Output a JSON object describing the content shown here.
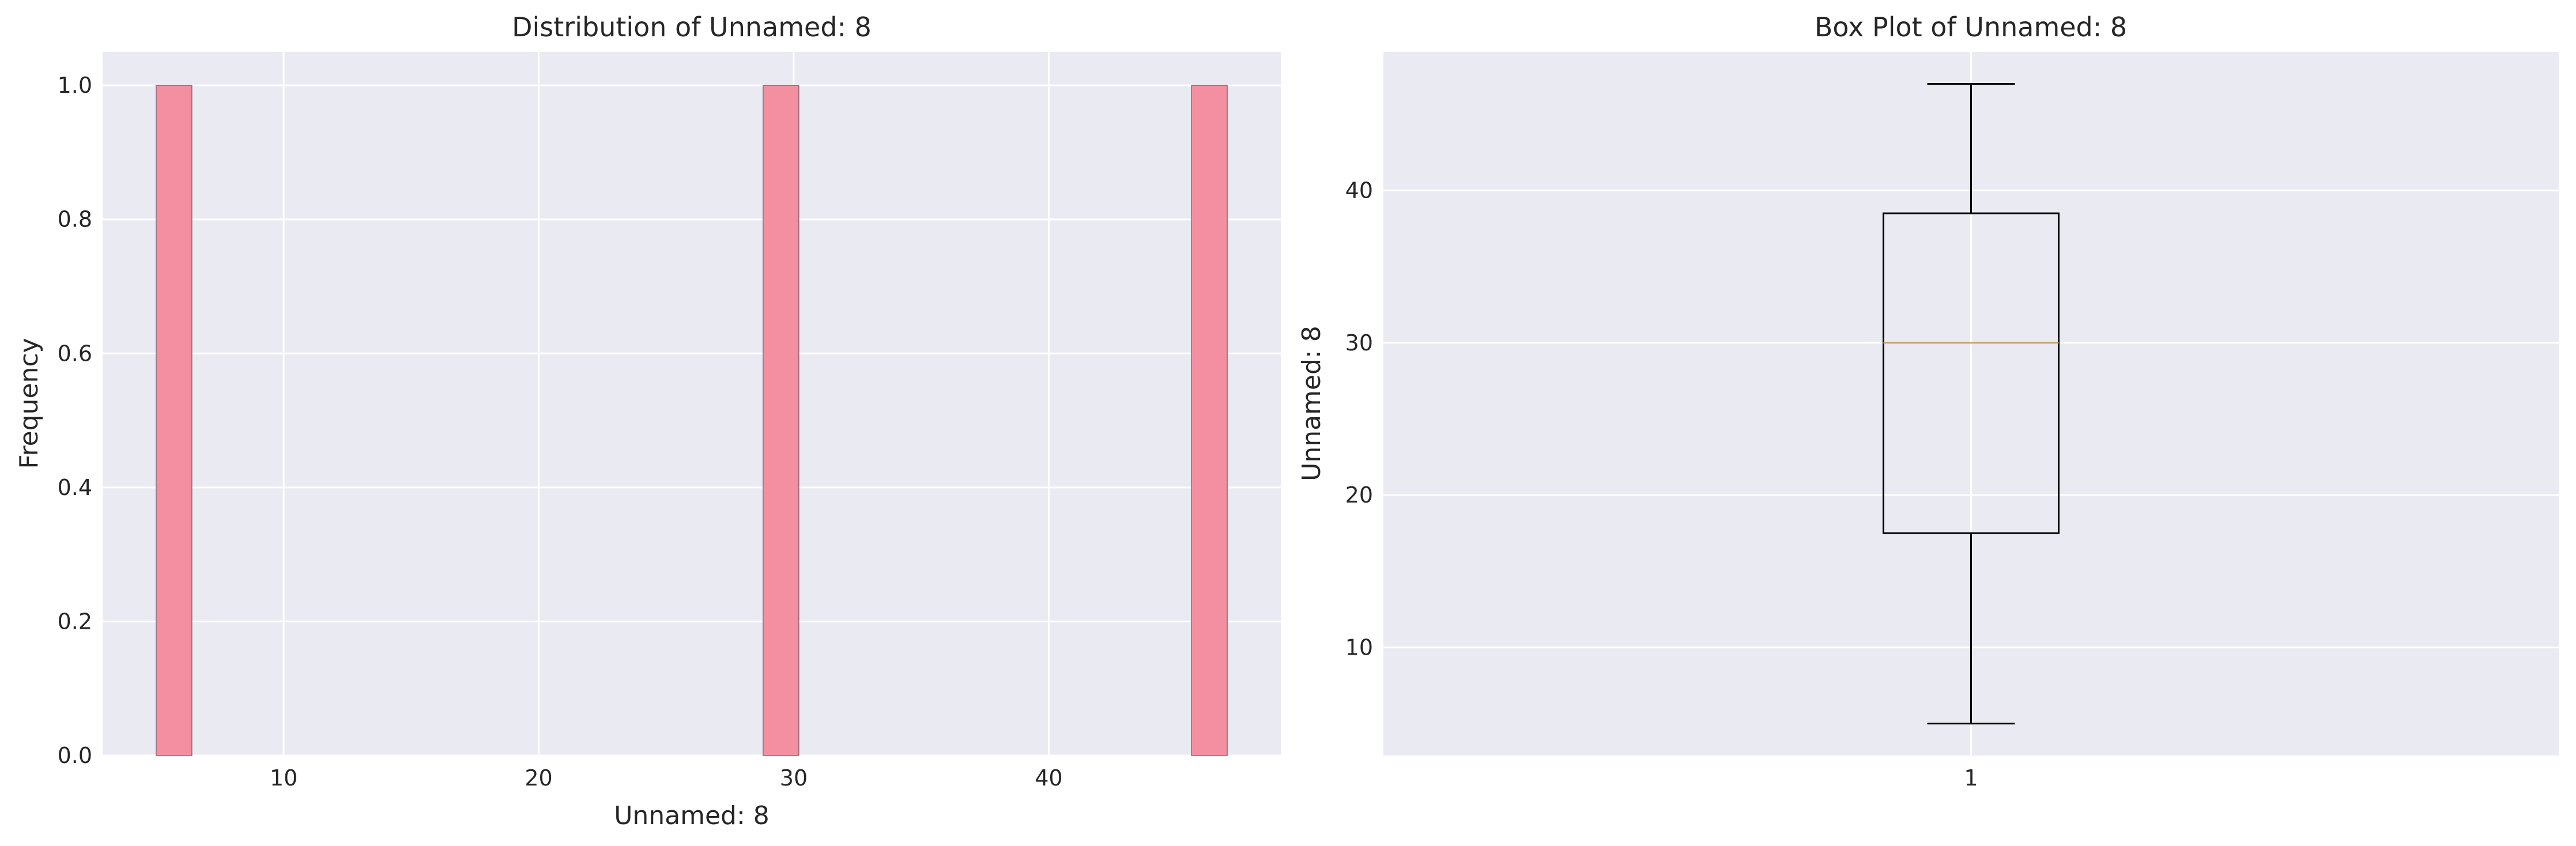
{
  "chart_data": [
    {
      "type": "bar",
      "title": "Distribution of Unnamed: 8",
      "xlabel": "Unnamed: 8",
      "ylabel": "Frequency",
      "xlim": [
        2.9,
        49.1
      ],
      "ylim": [
        0,
        1.05
      ],
      "xticks": [
        10,
        20,
        30,
        40
      ],
      "yticks": [
        0.0,
        0.2,
        0.4,
        0.6,
        0.8,
        1.0
      ],
      "ytick_labels": [
        "0.0",
        "0.2",
        "0.4",
        "0.6",
        "0.8",
        "1.0"
      ],
      "bin_width": 1.4,
      "bars": [
        {
          "x_start": 5.0,
          "x_end": 6.4,
          "count": 1
        },
        {
          "x_start": 28.8,
          "x_end": 30.2,
          "count": 1
        },
        {
          "x_start": 45.6,
          "x_end": 47.0,
          "count": 1
        }
      ],
      "bar_color": "#f48fa2",
      "grid": true
    },
    {
      "type": "box",
      "title": "Box Plot of Unnamed: 8",
      "ylabel": "Unnamed: 8",
      "ylim": [
        2.9,
        49.1
      ],
      "yticks": [
        10,
        20,
        30,
        40
      ],
      "categories": [
        "1"
      ],
      "box": {
        "min": 5,
        "q1": 17.5,
        "median": 30,
        "q3": 38.5,
        "max": 47
      },
      "median_color": "#c9a15b",
      "grid": true
    }
  ]
}
